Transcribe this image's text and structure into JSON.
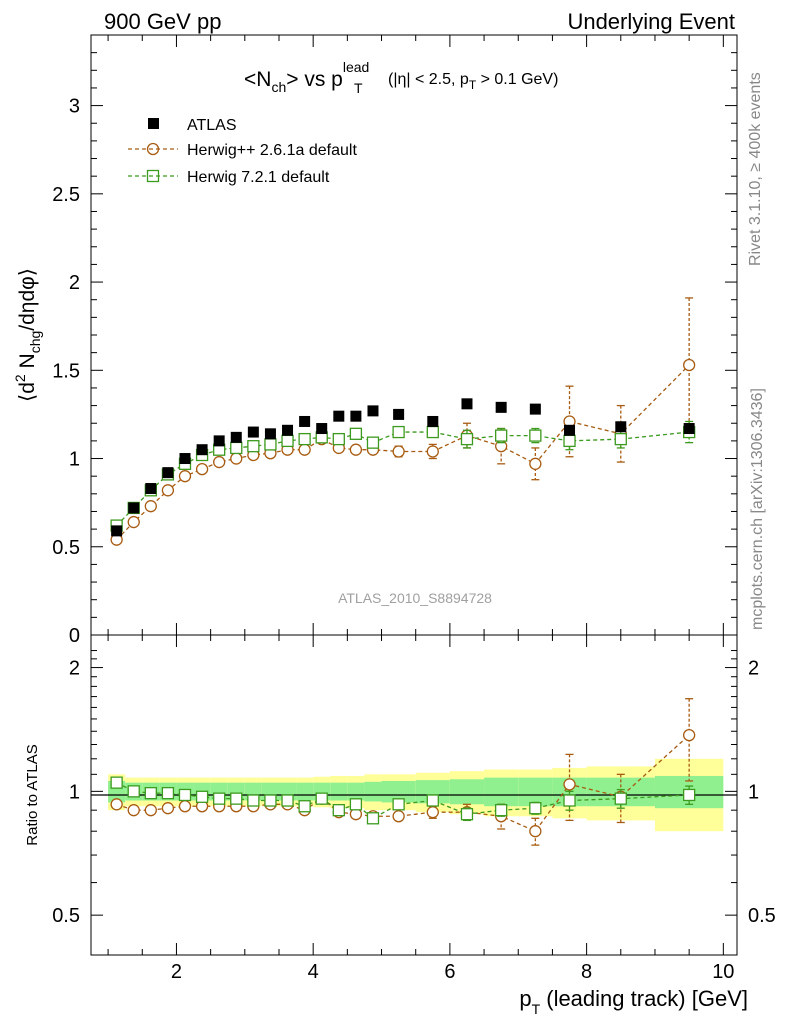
{
  "header": {
    "left": "900 GeV pp",
    "right": "Underlying Event"
  },
  "side_labels": {
    "rivet": "Rivet 3.1.10, ≥ 400k events",
    "mcplots": "mcplots.cern.ch [arXiv:1306.3436]"
  },
  "colors": {
    "atlas": "#000000",
    "herwigpp": "#a85c12",
    "herwig7": "#3c9a1e",
    "band_inner": "#90f090",
    "band_outer": "#ffff99"
  },
  "chart_data": [
    {
      "type": "scatter",
      "panel": "main",
      "title_parts": {
        "pre": "<N",
        "sub1": "ch",
        "mid": "> vs p",
        "sup": "lead",
        "sub2": "T",
        "cut1": "(|η| < 2.5, p",
        "cut_sub": "T",
        "cut2": " > 0.1 GeV)"
      },
      "ylabel_parts": {
        "a": "⟨d",
        "sup": "2",
        "b": " N",
        "sub": "chg",
        "c": "/dηdφ⟩"
      },
      "watermark": "ATLAS_2010_S8894728",
      "xlim": [
        0.75,
        10.2
      ],
      "ylim": [
        0,
        3.4
      ],
      "yticks": [
        0,
        0.5,
        1,
        1.5,
        2,
        2.5,
        3
      ],
      "ytick_labels": [
        "0",
        "0.5",
        "1",
        "1.5",
        "2",
        "2.5",
        "3"
      ],
      "legend": [
        "ATLAS",
        "Herwig++ 2.6.1a default",
        "Herwig 7.2.1 default"
      ],
      "series": [
        {
          "name": "ATLAS",
          "marker": "filled-square",
          "x": [
            1.125,
            1.375,
            1.625,
            1.875,
            2.125,
            2.375,
            2.625,
            2.875,
            3.125,
            3.375,
            3.625,
            3.875,
            4.125,
            4.375,
            4.625,
            4.875,
            5.25,
            5.75,
            6.25,
            6.75,
            7.25,
            7.75,
            8.5,
            9.5
          ],
          "y": [
            0.59,
            0.72,
            0.83,
            0.92,
            1.0,
            1.05,
            1.1,
            1.12,
            1.15,
            1.14,
            1.16,
            1.21,
            1.17,
            1.24,
            1.24,
            1.27,
            1.25,
            1.21,
            1.31,
            1.29,
            1.28,
            1.16,
            1.18,
            1.17
          ]
        },
        {
          "name": "Herwig++ 2.6.1a default",
          "marker": "open-circle",
          "x": [
            1.125,
            1.375,
            1.625,
            1.875,
            2.125,
            2.375,
            2.625,
            2.875,
            3.125,
            3.375,
            3.625,
            3.875,
            4.125,
            4.375,
            4.625,
            4.875,
            5.25,
            5.75,
            6.25,
            6.75,
            7.25,
            7.75,
            8.5,
            9.5
          ],
          "y": [
            0.54,
            0.64,
            0.73,
            0.82,
            0.9,
            0.94,
            0.98,
            1.0,
            1.02,
            1.03,
            1.05,
            1.05,
            1.11,
            1.06,
            1.05,
            1.05,
            1.04,
            1.04,
            1.13,
            1.07,
            0.97,
            1.21,
            1.14,
            1.53
          ],
          "err": [
            0,
            0,
            0,
            0,
            0,
            0,
            0,
            0,
            0,
            0,
            0,
            0,
            0,
            0,
            0,
            0,
            0.03,
            0.04,
            0.07,
            0.1,
            0.09,
            0.2,
            0.16,
            0.38
          ]
        },
        {
          "name": "Herwig 7.2.1 default",
          "marker": "open-square",
          "x": [
            1.125,
            1.375,
            1.625,
            1.875,
            2.125,
            2.375,
            2.625,
            2.875,
            3.125,
            3.375,
            3.625,
            3.875,
            4.125,
            4.375,
            4.625,
            4.875,
            5.25,
            5.75,
            6.25,
            6.75,
            7.25,
            7.75,
            8.5,
            9.5
          ],
          "y": [
            0.62,
            0.72,
            0.82,
            0.91,
            0.97,
            1.02,
            1.05,
            1.06,
            1.07,
            1.08,
            1.1,
            1.11,
            1.12,
            1.11,
            1.14,
            1.09,
            1.15,
            1.15,
            1.11,
            1.13,
            1.13,
            1.1,
            1.11,
            1.15
          ],
          "err": [
            0,
            0,
            0,
            0,
            0,
            0,
            0,
            0,
            0,
            0,
            0,
            0,
            0,
            0,
            0,
            0,
            0.02,
            0.03,
            0.05,
            0.04,
            0.04,
            0.05,
            0.05,
            0.06
          ]
        }
      ]
    },
    {
      "type": "scatter",
      "panel": "ratio",
      "ylabel": "Ratio to ATLAS",
      "xlabel_parts": {
        "a": "p",
        "sub": "T",
        "b": " (leading track) [GeV]"
      },
      "xlim": [
        0.75,
        10.2
      ],
      "ylim": [
        0.4,
        2.4
      ],
      "log_y": true,
      "xticks": [
        2,
        4,
        6,
        8,
        10
      ],
      "xtick_labels": [
        "2",
        "4",
        "6",
        "8",
        "10"
      ],
      "yticks": [
        0.5,
        1,
        2
      ],
      "ytick_labels": [
        "0.5",
        "1",
        "2"
      ],
      "band": {
        "edges": [
          1.0,
          1.25,
          1.5,
          1.75,
          2.0,
          2.25,
          2.5,
          2.75,
          3.0,
          3.25,
          3.5,
          3.75,
          4.0,
          4.25,
          4.5,
          4.75,
          5.0,
          5.5,
          6.0,
          6.5,
          7.0,
          7.5,
          8.0,
          9.0,
          10.0
        ],
        "inner": [
          0.06,
          0.05,
          0.05,
          0.05,
          0.05,
          0.05,
          0.05,
          0.05,
          0.05,
          0.05,
          0.05,
          0.05,
          0.05,
          0.05,
          0.05,
          0.055,
          0.06,
          0.065,
          0.07,
          0.08,
          0.08,
          0.08,
          0.08,
          0.09
        ],
        "outer": [
          0.1,
          0.08,
          0.08,
          0.08,
          0.08,
          0.08,
          0.08,
          0.08,
          0.08,
          0.08,
          0.08,
          0.08,
          0.085,
          0.09,
          0.09,
          0.1,
          0.1,
          0.11,
          0.12,
          0.13,
          0.13,
          0.14,
          0.15,
          0.2
        ]
      },
      "series": [
        {
          "name": "Herwig++ 2.6.1a default",
          "x": [
            1.125,
            1.375,
            1.625,
            1.875,
            2.125,
            2.375,
            2.625,
            2.875,
            3.125,
            3.375,
            3.625,
            3.875,
            4.125,
            4.375,
            4.625,
            4.875,
            5.25,
            5.75,
            6.25,
            6.75,
            7.25,
            7.75,
            8.5,
            9.5
          ],
          "y": [
            0.93,
            0.9,
            0.9,
            0.91,
            0.92,
            0.92,
            0.92,
            0.92,
            0.92,
            0.93,
            0.93,
            0.9,
            0.96,
            0.89,
            0.88,
            0.87,
            0.87,
            0.89,
            0.89,
            0.87,
            0.8,
            1.04,
            0.97,
            1.37
          ],
          "err": [
            0,
            0,
            0,
            0,
            0,
            0,
            0,
            0,
            0,
            0,
            0,
            0,
            0,
            0.01,
            0.02,
            0.02,
            0.02,
            0.03,
            0.04,
            0.06,
            0.06,
            0.19,
            0.13,
            0.31
          ]
        },
        {
          "name": "Herwig 7.2.1 default",
          "x": [
            1.125,
            1.375,
            1.625,
            1.875,
            2.125,
            2.375,
            2.625,
            2.875,
            3.125,
            3.375,
            3.625,
            3.875,
            4.125,
            4.375,
            4.625,
            4.875,
            5.25,
            5.75,
            6.25,
            6.75,
            7.25,
            7.75,
            8.5,
            9.5
          ],
          "y": [
            1.05,
            1.0,
            0.99,
            0.99,
            0.98,
            0.97,
            0.96,
            0.96,
            0.95,
            0.95,
            0.95,
            0.92,
            0.96,
            0.9,
            0.93,
            0.86,
            0.93,
            0.95,
            0.88,
            0.9,
            0.91,
            0.95,
            0.96,
            0.98
          ],
          "err": [
            0,
            0,
            0,
            0,
            0,
            0,
            0,
            0,
            0,
            0,
            0,
            0,
            0,
            0,
            0,
            0,
            0.02,
            0.02,
            0.03,
            0.03,
            0.03,
            0.05,
            0.05,
            0.05
          ]
        }
      ]
    }
  ]
}
